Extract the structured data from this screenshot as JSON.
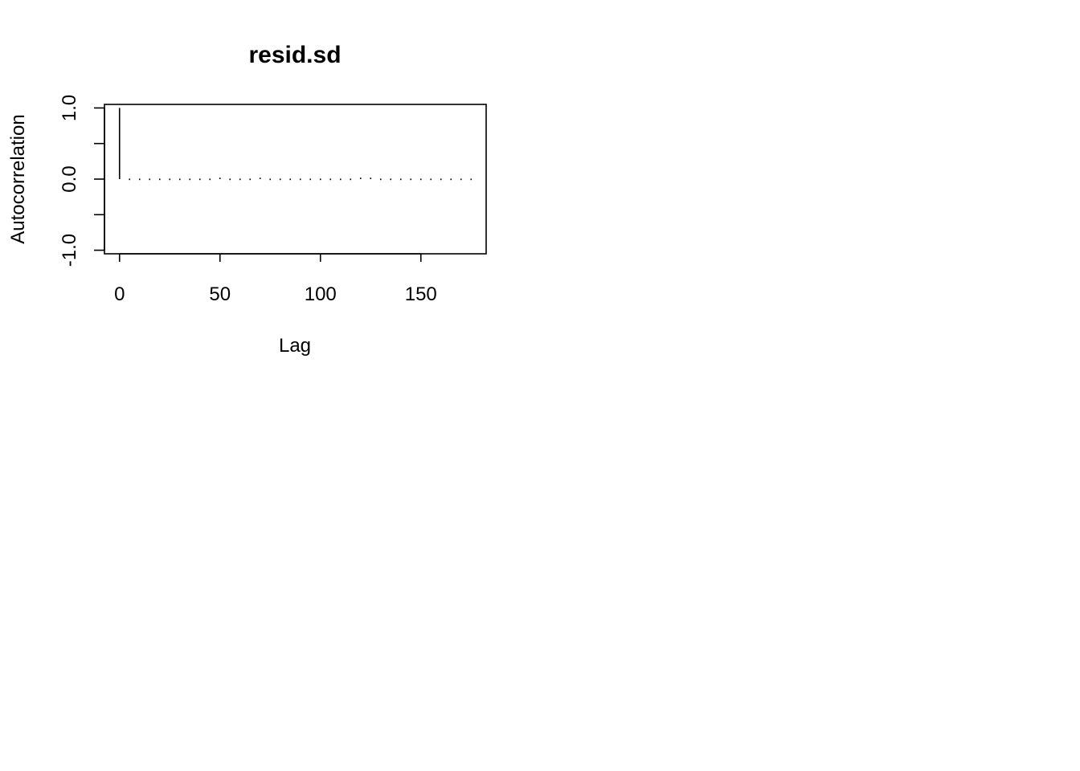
{
  "chart_data": {
    "type": "bar",
    "title": "resid.sd",
    "xlabel": "Lag",
    "ylabel": "Autocorrelation",
    "xlim": [
      -7.5,
      182.5
    ],
    "ylim": [
      -1.05,
      1.05
    ],
    "x_ticks": [
      0,
      50,
      100,
      150
    ],
    "x_tick_labels": [
      "0",
      "50",
      "100",
      "150"
    ],
    "y_ticks": [
      -1.0,
      -0.5,
      0.0,
      0.5,
      1.0
    ],
    "y_tick_labels": [
      "-1.0",
      "",
      "0.0",
      "",
      "1.0"
    ],
    "grid": false,
    "legend": "none",
    "color": "#000000",
    "series": [
      {
        "lags": [
          0,
          5,
          10,
          15,
          20,
          25,
          30,
          35,
          40,
          45,
          50,
          55,
          60,
          65,
          70,
          75,
          80,
          85,
          90,
          95,
          100,
          105,
          110,
          115,
          120,
          125,
          130,
          135,
          140,
          145,
          150,
          155,
          160,
          165,
          170,
          175
        ],
        "values": [
          1.0,
          0.01,
          0.01,
          0.0,
          0.01,
          0.0,
          0.0,
          -0.01,
          0.0,
          0.0,
          0.02,
          0.0,
          -0.01,
          0.01,
          0.02,
          0.01,
          0.01,
          0.01,
          0.01,
          0.0,
          0.0,
          -0.01,
          -0.01,
          0.0,
          0.02,
          0.02,
          0.0,
          -0.01,
          0.0,
          -0.01,
          0.01,
          0.0,
          0.0,
          0.01,
          0.0,
          -0.01
        ]
      }
    ]
  }
}
